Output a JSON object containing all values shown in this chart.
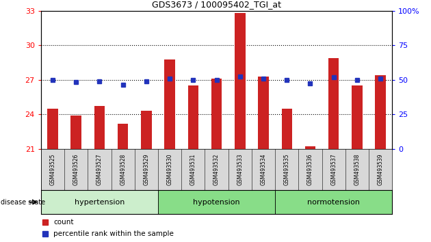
{
  "title": "GDS3673 / 100095402_TGI_at",
  "samples": [
    "GSM493525",
    "GSM493526",
    "GSM493527",
    "GSM493528",
    "GSM493529",
    "GSM493530",
    "GSM493531",
    "GSM493532",
    "GSM493533",
    "GSM493534",
    "GSM493535",
    "GSM493536",
    "GSM493537",
    "GSM493538",
    "GSM493539"
  ],
  "bar_values": [
    24.5,
    23.9,
    24.7,
    23.2,
    24.3,
    28.8,
    26.5,
    27.1,
    32.8,
    27.3,
    24.5,
    21.2,
    28.9,
    26.5,
    27.4
  ],
  "blue_values": [
    27.0,
    26.8,
    26.9,
    26.6,
    26.9,
    27.1,
    27.0,
    27.0,
    27.3,
    27.1,
    27.0,
    26.7,
    27.2,
    27.0,
    27.1
  ],
  "ylim_left": [
    21,
    33
  ],
  "ylim_right": [
    0,
    100
  ],
  "yticks_left": [
    21,
    24,
    27,
    30,
    33
  ],
  "yticks_right": [
    0,
    25,
    50,
    75,
    100
  ],
  "bar_color": "#cc2222",
  "blue_color": "#2233bb",
  "legend_count_label": "count",
  "legend_pct_label": "percentile rank within the sample",
  "disease_state_label": "disease state",
  "groups": [
    {
      "label": "hypertension",
      "start": 0,
      "end": 5,
      "color": "#cceecc"
    },
    {
      "label": "hypotension",
      "start": 5,
      "end": 10,
      "color": "#88dd88"
    },
    {
      "label": "normotension",
      "start": 10,
      "end": 15,
      "color": "#88dd88"
    }
  ]
}
